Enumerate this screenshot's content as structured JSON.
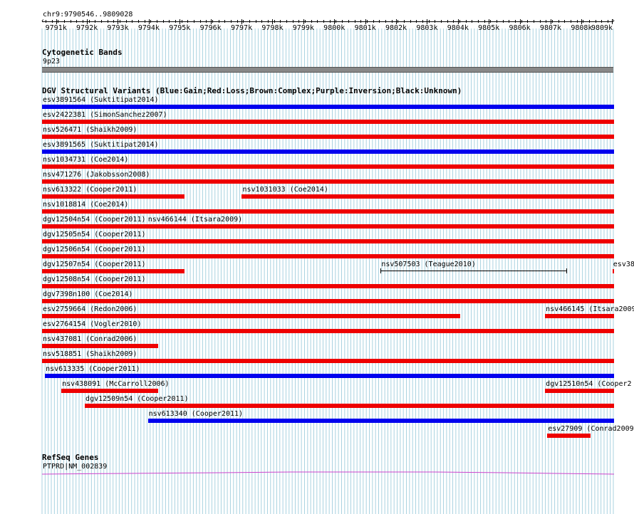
{
  "locus": "chr9:9790546..9809028",
  "ruler": {
    "ticks": [
      "9791k",
      "9792k",
      "9793k",
      "9794k",
      "9795k",
      "9796k",
      "9797k",
      "9798k",
      "9799k",
      "9800k",
      "9801k",
      "9802k",
      "9803k",
      "9804k",
      "9805k",
      "9806k",
      "9807k",
      "9808k",
      "9809k"
    ],
    "colors": {
      "line": "#000000",
      "grid": "#a9d2e0"
    }
  },
  "tracks": {
    "cytoband": {
      "title": "Cytogenetic Bands",
      "band": "9p23",
      "color": "#888888"
    },
    "dgv": {
      "title": "DGV Structural Variants (Blue:Gain;Red:Loss;Brown:Complex;Purple:Inversion;Black:Unknown)",
      "colors": {
        "gain": "#0000ee",
        "loss": "#ee0000",
        "unknown": "#000000"
      },
      "rows": [
        [
          {
            "label": "esv3891564 (Suktitipat2014)",
            "type": "gain",
            "start": 9790546,
            "end": 9809028
          }
        ],
        [
          {
            "label": "esv2422381 (SimonSanchez2007)",
            "type": "loss",
            "start": 9790546,
            "end": 9809028
          }
        ],
        [
          {
            "label": "nsv526471 (Shaikh2009)",
            "type": "loss",
            "start": 9790546,
            "end": 9809028
          }
        ],
        [
          {
            "label": "esv3891565 (Suktitipat2014)",
            "type": "gain",
            "start": 9790546,
            "end": 9809028
          }
        ],
        [
          {
            "label": "nsv1034731 (Coe2014)",
            "type": "loss",
            "start": 9790546,
            "end": 9809028
          }
        ],
        [
          {
            "label": "nsv471276 (Jakobsson2008)",
            "type": "loss",
            "start": 9790546,
            "end": 9809028
          }
        ],
        [
          {
            "label": "nsv613322 (Cooper2011)",
            "type": "loss",
            "start": 9790546,
            "end": 9795150
          },
          {
            "label": "nsv1031033 (Coe2014)",
            "type": "loss",
            "start": 9797010,
            "end": 9809028
          }
        ],
        [
          {
            "label": "nsv1018814 (Coe2014)",
            "type": "loss",
            "start": 9790546,
            "end": 9809028
          }
        ],
        [
          {
            "label": "dgv12504n54 (Cooper2011)",
            "type": "loss",
            "start": 9790546,
            "end": 9793950
          },
          {
            "label": "nsv466144 (Itsara2009)",
            "type": "loss",
            "start": 9793950,
            "end": 9809028
          }
        ],
        [
          {
            "label": "dgv12505n54 (Cooper2011)",
            "type": "loss",
            "start": 9790546,
            "end": 9809028
          }
        ],
        [
          {
            "label": "dgv12506n54 (Cooper2011)",
            "type": "loss",
            "start": 9790546,
            "end": 9809028
          }
        ],
        [
          {
            "label": "dgv12507n54 (Cooper2011)",
            "type": "loss",
            "start": 9790546,
            "end": 9795150
          },
          {
            "label": "nsv507503 (Teague2010)",
            "type": "unknown",
            "start": 9801500,
            "end": 9807500
          },
          {
            "label": "esv38",
            "type": "loss",
            "start": 9809000,
            "end": 9809028
          }
        ],
        [
          {
            "label": "dgv12508n54 (Cooper2011)",
            "type": "loss",
            "start": 9790546,
            "end": 9809028
          }
        ],
        [
          {
            "label": "dgv7398n100 (Coe2014)",
            "type": "loss",
            "start": 9790546,
            "end": 9809028
          }
        ],
        [
          {
            "label": "esv2759664 (Redon2006)",
            "type": "loss",
            "start": 9790546,
            "end": 9804080
          },
          {
            "label": "nsv466145 (Itsara2009",
            "type": "loss",
            "start": 9806820,
            "end": 9809028
          }
        ],
        [
          {
            "label": "esv2764154 (Vogler2010)",
            "type": "loss",
            "start": 9790546,
            "end": 9809028
          }
        ],
        [
          {
            "label": "nsv437081 (Conrad2006)",
            "type": "loss",
            "start": 9790546,
            "end": 9794300
          }
        ],
        [
          {
            "label": "nsv518851 (Shaikh2009)",
            "type": "loss",
            "start": 9790546,
            "end": 9809028
          }
        ],
        [
          {
            "label": "nsv613335 (Cooper2011)",
            "type": "gain",
            "start": 9790640,
            "end": 9809028
          }
        ],
        [
          {
            "label": "nsv438091 (McCarroll2006)",
            "type": "loss",
            "start": 9791170,
            "end": 9794300
          },
          {
            "label": "dgv12510n54 (Cooper2",
            "type": "loss",
            "start": 9806820,
            "end": 9809028
          }
        ],
        [
          {
            "label": "dgv12509n54 (Cooper2011)",
            "type": "loss",
            "start": 9791930,
            "end": 9809028
          }
        ],
        [
          {
            "label": "nsv613340 (Cooper2011)",
            "type": "gain",
            "start": 9793970,
            "end": 9809028
          }
        ],
        [
          {
            "label": "esv27909 (Conrad2009",
            "type": "loss",
            "start": 9806890,
            "end": 9808280
          }
        ]
      ]
    },
    "refseq": {
      "title": "RefSeq Genes",
      "gene": "PTPRD|NM_002839",
      "color": "#cc44cc"
    }
  }
}
